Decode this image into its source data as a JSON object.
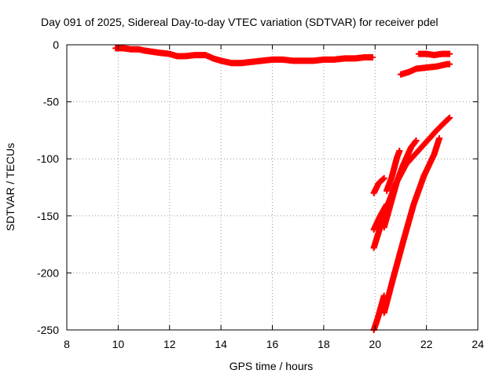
{
  "chart_data": {
    "type": "scatter",
    "title": "Day 091 of 2025, Sidereal Day-to-day VTEC variation (SDTVAR) for receiver pdel",
    "xlabel": "GPS time / hours",
    "ylabel": "SDTVAR / TECUs",
    "xlim": [
      8,
      24
    ],
    "ylim": [
      -250,
      0
    ],
    "x_ticks": [
      8,
      10,
      12,
      14,
      16,
      18,
      20,
      22,
      24
    ],
    "x_tick_labels": [
      "8",
      "10",
      "12",
      "14",
      "16",
      "18",
      "20",
      "22",
      "24"
    ],
    "y_ticks": [
      0,
      -50,
      -100,
      -150,
      -200,
      -250
    ],
    "y_tick_labels": [
      "0",
      "-50",
      "-100",
      "-150",
      "-200",
      "-250"
    ],
    "grid": true,
    "legend": "none",
    "marker_color": "#ff0000",
    "series": [
      {
        "points": [
          [
            9.9,
            -3
          ],
          [
            10.2,
            -3
          ],
          [
            10.5,
            -4
          ],
          [
            10.8,
            -4
          ],
          [
            11.0,
            -5
          ],
          [
            11.3,
            -6
          ],
          [
            11.6,
            -7
          ],
          [
            12.0,
            -8
          ],
          [
            12.3,
            -10
          ],
          [
            12.6,
            -10
          ],
          [
            13.0,
            -9
          ],
          [
            13.4,
            -9
          ],
          [
            13.7,
            -12
          ],
          [
            14.0,
            -14
          ],
          [
            14.4,
            -16
          ],
          [
            14.8,
            -16
          ],
          [
            15.2,
            -15
          ],
          [
            15.6,
            -14
          ],
          [
            16.0,
            -13
          ],
          [
            16.4,
            -13
          ],
          [
            16.8,
            -14
          ],
          [
            17.2,
            -14
          ],
          [
            17.6,
            -14
          ],
          [
            18.0,
            -13
          ],
          [
            18.4,
            -13
          ],
          [
            18.8,
            -12
          ],
          [
            19.2,
            -12
          ],
          [
            19.6,
            -11
          ],
          [
            19.9,
            -11
          ]
        ]
      },
      {
        "points": [
          [
            21.0,
            -26
          ],
          [
            21.3,
            -24
          ],
          [
            21.6,
            -21
          ],
          [
            22.0,
            -20
          ],
          [
            22.4,
            -19
          ],
          [
            22.8,
            -17
          ],
          [
            22.9,
            -17
          ]
        ]
      },
      {
        "points": [
          [
            21.7,
            -8
          ],
          [
            22.0,
            -8
          ],
          [
            22.3,
            -9
          ],
          [
            22.6,
            -8
          ],
          [
            22.9,
            -8
          ]
        ]
      },
      {
        "points": [
          [
            19.95,
            -130
          ],
          [
            20.15,
            -121
          ],
          [
            20.35,
            -117
          ]
        ]
      },
      {
        "points": [
          [
            19.95,
            -162
          ],
          [
            20.2,
            -150
          ],
          [
            20.45,
            -140
          ]
        ]
      },
      {
        "points": [
          [
            20.45,
            -128
          ],
          [
            20.65,
            -116
          ],
          [
            20.85,
            -99
          ],
          [
            20.95,
            -93
          ]
        ]
      },
      {
        "points": [
          [
            20.35,
            -160
          ],
          [
            20.6,
            -140
          ],
          [
            20.85,
            -120
          ],
          [
            21.1,
            -105
          ],
          [
            21.4,
            -90
          ],
          [
            21.6,
            -84
          ]
        ]
      },
      {
        "points": [
          [
            19.95,
            -178
          ],
          [
            20.2,
            -160
          ],
          [
            20.5,
            -140
          ],
          [
            20.8,
            -122
          ],
          [
            21.2,
            -105
          ],
          [
            21.6,
            -95
          ],
          [
            22.0,
            -85
          ],
          [
            22.4,
            -75
          ],
          [
            22.8,
            -66
          ],
          [
            22.9,
            -64
          ]
        ]
      },
      {
        "points": [
          [
            19.95,
            -250
          ],
          [
            20.1,
            -240
          ],
          [
            20.35,
            -220
          ]
        ]
      },
      {
        "points": [
          [
            20.35,
            -235
          ],
          [
            20.7,
            -205
          ],
          [
            21.1,
            -172
          ],
          [
            21.5,
            -140
          ],
          [
            21.9,
            -115
          ],
          [
            22.3,
            -96
          ],
          [
            22.5,
            -82
          ]
        ]
      }
    ]
  }
}
